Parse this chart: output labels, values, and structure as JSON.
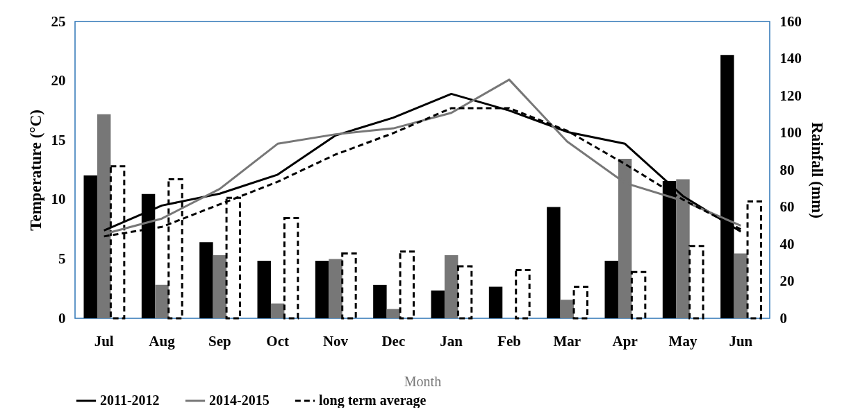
{
  "chart_data": {
    "type": "bar",
    "xlabel": "Month",
    "ylabel": "Temperature (°C)",
    "y2label": "Rainfall (mm)",
    "categories": [
      "Jul",
      "Aug",
      "Sep",
      "Oct",
      "Nov",
      "Dec",
      "Jan",
      "Feb",
      "Mar",
      "Apr",
      "May",
      "Jun"
    ],
    "series": [
      {
        "type": "bar",
        "axis": "y2",
        "color": "#000000",
        "values": [
          77,
          67,
          41,
          31,
          31,
          18,
          15,
          17,
          60,
          31,
          74,
          142
        ]
      },
      {
        "type": "bar",
        "axis": "y2",
        "color": "#777777",
        "values": [
          110,
          18,
          34,
          8,
          32,
          5,
          34,
          0,
          10,
          86,
          75,
          35
        ]
      },
      {
        "type": "bar",
        "axis": "y2",
        "color": "#000000",
        "line_style": "dashed",
        "values": [
          82,
          75,
          65,
          54,
          35,
          36,
          28,
          26,
          17,
          25,
          39,
          63
        ]
      },
      {
        "type": "line",
        "name": "2011-2012",
        "color": "#000000",
        "line_style": "solid",
        "values": [
          7.4,
          9.5,
          10.5,
          12.1,
          15.4,
          16.9,
          18.9,
          17.5,
          15.7,
          14.7,
          10.3,
          7.3
        ]
      },
      {
        "type": "line",
        "name": "2014-2015",
        "color": "#777777",
        "line_style": "solid",
        "values": [
          7.1,
          8.4,
          10.9,
          14.7,
          15.5,
          16.0,
          17.3,
          20.1,
          14.9,
          11.4,
          9.9,
          7.8
        ]
      },
      {
        "type": "line",
        "name": "long term average",
        "color": "#000000",
        "line_style": "dashed",
        "values": [
          6.9,
          7.7,
          9.6,
          11.5,
          13.8,
          15.6,
          17.7,
          17.7,
          15.8,
          13.0,
          10.0,
          7.5
        ]
      }
    ],
    "ylim": [
      0,
      25
    ],
    "yticks": [
      0,
      5,
      10,
      15,
      20,
      25
    ],
    "y2lim": [
      0,
      160
    ],
    "y2ticks": [
      0,
      20,
      40,
      60,
      80,
      100,
      120,
      140,
      160
    ],
    "grid": false,
    "legend": "bottom",
    "marker": "none"
  }
}
